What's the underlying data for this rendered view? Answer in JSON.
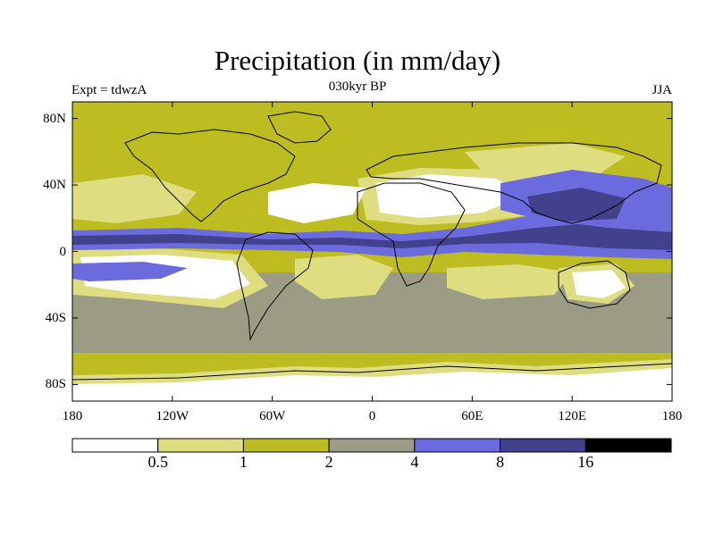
{
  "title": "Precipitation (in mm/day)",
  "subtitle_left": "Expt = tdwzA",
  "subtitle_center": "030kyr BP",
  "subtitle_right": "JJA",
  "map": {
    "projection": "cylindrical equidistant",
    "lon_range": [
      -180,
      180
    ],
    "lat_range": [
      -90,
      90
    ],
    "y_ticks": [
      {
        "lat": 80,
        "label": "80N"
      },
      {
        "lat": 40,
        "label": "40N"
      },
      {
        "lat": 0,
        "label": "0"
      },
      {
        "lat": -40,
        "label": "40S"
      },
      {
        "lat": -80,
        "label": "80S"
      }
    ],
    "x_ticks": [
      {
        "lon": -180,
        "label": "180"
      },
      {
        "lon": -120,
        "label": "120W"
      },
      {
        "lon": -60,
        "label": "60W"
      },
      {
        "lon": 0,
        "label": "0"
      },
      {
        "lon": 60,
        "label": "60E"
      },
      {
        "lon": 120,
        "label": "120E"
      },
      {
        "lon": 180,
        "label": "180"
      }
    ]
  },
  "colorbar": {
    "colors": [
      "#ffffff",
      "#dede80",
      "#bdbd21",
      "#9c9c84",
      "#6b6bde",
      "#42428c",
      "#000000"
    ],
    "labels": [
      "0.5",
      "1",
      "2",
      "4",
      "8",
      "16"
    ]
  }
}
